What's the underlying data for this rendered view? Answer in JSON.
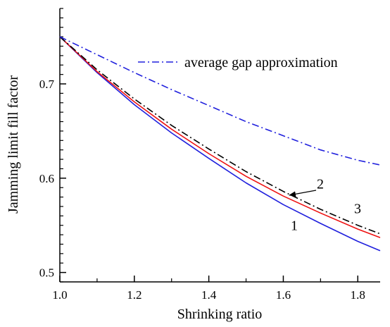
{
  "chart_data": {
    "type": "line",
    "title": "",
    "xlabel": "Shrinking ratio",
    "ylabel": "Jamming limit fill factor",
    "xlim": [
      1.0,
      1.86
    ],
    "ylim": [
      0.49,
      0.78
    ],
    "xticks": [
      1.0,
      1.2,
      1.4,
      1.6,
      1.8
    ],
    "xtick_labels": [
      "1.0",
      "1.2",
      "1.4",
      "1.6",
      "1.8"
    ],
    "yticks": [
      0.5,
      0.6,
      0.7
    ],
    "ytick_labels": [
      "0.5",
      "0.6",
      "0.7"
    ],
    "grid": false,
    "legend_position": "top-right",
    "series": [
      {
        "name": "",
        "label": "1",
        "color": "#2020dd",
        "style": "solid",
        "x": [
          1.0,
          1.1,
          1.2,
          1.3,
          1.4,
          1.5,
          1.6,
          1.7,
          1.8,
          1.86
        ],
        "y": [
          0.75,
          0.712,
          0.678,
          0.648,
          0.621,
          0.595,
          0.572,
          0.552,
          0.533,
          0.523
        ]
      },
      {
        "name": "",
        "label": "2",
        "color": "#ee1111",
        "style": "solid",
        "x": [
          1.0,
          1.1,
          1.2,
          1.3,
          1.4,
          1.5,
          1.6,
          1.7,
          1.8,
          1.86
        ],
        "y": [
          0.75,
          0.713,
          0.681,
          0.652,
          0.626,
          0.602,
          0.581,
          0.563,
          0.546,
          0.537
        ]
      },
      {
        "name": "",
        "label": "3",
        "color": "#000000",
        "style": "dashdot",
        "x": [
          1.0,
          1.1,
          1.2,
          1.3,
          1.4,
          1.5,
          1.6,
          1.7,
          1.8,
          1.86
        ],
        "y": [
          0.75,
          0.715,
          0.684,
          0.656,
          0.631,
          0.607,
          0.586,
          0.567,
          0.55,
          0.541
        ]
      },
      {
        "name": "average gap approximation",
        "label": "",
        "color": "#2020dd",
        "style": "dashdot",
        "x": [
          1.0,
          1.1,
          1.2,
          1.3,
          1.4,
          1.5,
          1.6,
          1.7,
          1.8,
          1.86
        ],
        "y": [
          0.75,
          0.731,
          0.712,
          0.694,
          0.677,
          0.66,
          0.645,
          0.63,
          0.619,
          0.614
        ]
      }
    ],
    "annotations": [
      {
        "text": "1",
        "x": 1.62,
        "y": 0.545
      },
      {
        "text": "2",
        "x": 1.69,
        "y": 0.589
      },
      {
        "text": "3",
        "x": 1.79,
        "y": 0.563
      }
    ]
  }
}
